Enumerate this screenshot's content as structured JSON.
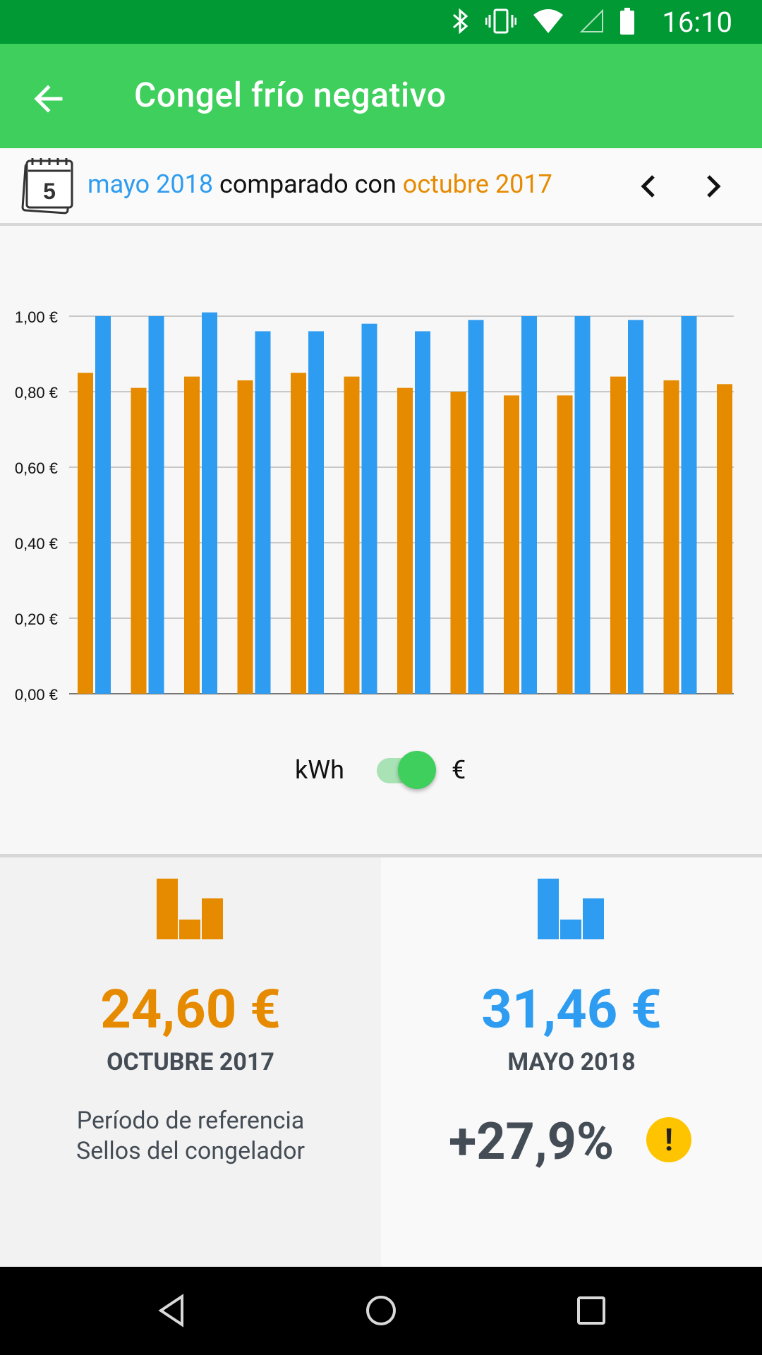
{
  "status": {
    "time": "16:10"
  },
  "app": {
    "title": "Congel frío negativo"
  },
  "comparison": {
    "calendar_day": "5",
    "current_period": "mayo 2018",
    "connector": "comparado con",
    "reference_period": "octubre 2017"
  },
  "colors": {
    "current": "#2e9cf0",
    "reference": "#e68a00",
    "accent": "#3ecf5c"
  },
  "toggle": {
    "left_label": "kWh",
    "right_label": "€",
    "selected": "€"
  },
  "chart_data": {
    "type": "bar",
    "ylim": [
      0,
      1.0
    ],
    "yticks": [
      0,
      0.2,
      0.4,
      0.6,
      0.8,
      1.0
    ],
    "ytick_labels": [
      "0,00 €",
      "0,20 €",
      "0,40 €",
      "0,60 €",
      "0,80 €",
      "1,00 €"
    ],
    "grid": true,
    "series": [
      {
        "values": [
          0.85,
          0.81,
          0.84,
          0.83,
          0.85,
          0.84,
          0.81,
          0.8,
          0.79,
          0.79,
          0.84,
          0.83,
          0.82
        ],
        "color": "#e68a00"
      },
      {
        "values": [
          1.0,
          1.0,
          1.01,
          0.96,
          0.96,
          0.98,
          0.96,
          0.99,
          1.0,
          1.0,
          0.99,
          1.0
        ],
        "color": "#2e9cf0"
      }
    ]
  },
  "summary": {
    "reference": {
      "amount": "24,60 €",
      "period": "OCTUBRE 2017",
      "note_line1": "Período de referencia",
      "note_line2": "Sellos del congelador"
    },
    "current": {
      "amount": "31,46 €",
      "period": "MAYO 2018",
      "change": "+27,9%",
      "warning_symbol": "!"
    }
  }
}
